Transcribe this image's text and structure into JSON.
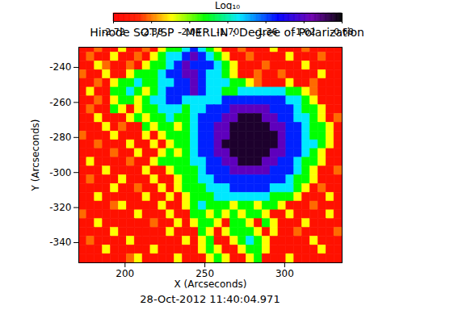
{
  "chart_data": {
    "type": "heatmap",
    "title": "Hinode SOT/SP - MERLIN : Degree of Polarization",
    "caption": "28-Oct-2012 11:40:04.971",
    "x_label": "X (Arcseconds)",
    "y_label": "Y (Arcseconds)",
    "xlim": [
      171,
      336
    ],
    "ylim": [
      -351.5,
      -228.5
    ],
    "xticks": [
      200,
      250,
      300
    ],
    "yticks": [
      -340,
      -320,
      -300,
      -280,
      -260,
      -240
    ],
    "colorbar": {
      "label": "Log₁₀",
      "lim": [
        -2.72,
        -0.68
      ],
      "ticks": [
        -2.72,
        -2.38,
        -2.04,
        {
          "value": -1.7,
          "label": "-1.70"
        },
        -1.36,
        -1.02,
        -0.68
      ]
    },
    "cells": {
      "x": [
        173.5,
        178.5,
        183.5,
        188.5,
        193.5,
        198.5,
        203.5,
        208.5,
        213.5,
        218.5,
        223.5,
        228.5,
        233.5,
        238.5,
        243.5,
        248.5,
        253.5,
        258.5,
        263.5,
        268.5,
        273.5,
        278.5,
        283.5,
        288.5,
        293.5,
        298.5,
        303.5,
        308.5,
        313.5,
        318.5,
        323.5,
        328.5,
        333.5
      ],
      "y": [
        -229,
        -234,
        -239,
        -244,
        -249,
        -254,
        -259,
        -264,
        -269,
        -274,
        -279,
        -284,
        -289,
        -294,
        -299,
        -304,
        -309,
        -314,
        -319,
        -324,
        -329,
        -334,
        -339,
        -344,
        -349
      ],
      "values": [
        [
          -2.6,
          -2.6,
          -2.4,
          -2.6,
          -2.6,
          -2.2,
          -2.6,
          -2.6,
          -2.4,
          -2.6,
          -2.2,
          -1.9,
          -1.9,
          -1.6,
          -1.3,
          -1.6,
          -1.9,
          -2.2,
          -2.6,
          -2.6,
          -2.4,
          -2.6,
          -2.6,
          -2.6,
          -2.2,
          -2.6,
          -2.6,
          -2.6,
          -2.4,
          -2.6,
          -2.6,
          -2.6,
          -2.6
        ],
        [
          -2.6,
          -2.4,
          -2.6,
          -2.6,
          -2.2,
          -2.6,
          -2.6,
          -2.4,
          -2.6,
          -2.2,
          -1.9,
          -1.6,
          -1.6,
          -1.3,
          -1.0,
          -1.3,
          -1.6,
          -1.9,
          -2.2,
          -2.6,
          -2.6,
          -2.4,
          -2.6,
          -2.6,
          -2.6,
          -2.6,
          -2.2,
          -2.6,
          -2.6,
          -2.6,
          -2.4,
          -2.6,
          -2.6
        ],
        [
          -2.6,
          -2.6,
          -2.2,
          -2.4,
          -2.6,
          -2.6,
          -2.4,
          -2.6,
          -2.2,
          -1.9,
          -1.9,
          -1.6,
          -1.3,
          -1.0,
          -1.3,
          -1.3,
          -1.3,
          -1.6,
          -1.9,
          -2.2,
          -2.6,
          -2.6,
          -2.6,
          -2.4,
          -2.6,
          -2.6,
          -2.6,
          -2.6,
          -2.2,
          -2.6,
          -2.6,
          -2.6,
          -2.6
        ],
        [
          -2.4,
          -2.6,
          -2.6,
          -2.2,
          -2.6,
          -2.6,
          -2.2,
          -1.9,
          -1.9,
          -1.9,
          -1.6,
          -1.3,
          -1.3,
          -1.0,
          -1.0,
          -1.3,
          -1.6,
          -1.6,
          -1.9,
          -2.2,
          -2.6,
          -2.6,
          -2.4,
          -2.6,
          -2.6,
          -2.4,
          -2.6,
          -2.6,
          -2.6,
          -2.6,
          -2.2,
          -2.6,
          -2.6
        ],
        [
          -2.6,
          -2.6,
          -2.4,
          -2.6,
          -2.2,
          -1.9,
          -1.9,
          -1.6,
          -1.9,
          -1.9,
          -1.6,
          -1.6,
          -1.3,
          -1.3,
          -1.0,
          -1.3,
          -1.6,
          -1.6,
          -1.6,
          -1.9,
          -1.9,
          -2.2,
          -2.4,
          -2.6,
          -2.6,
          -2.6,
          -2.2,
          -2.6,
          -2.6,
          -2.4,
          -2.6,
          -2.6,
          -2.6
        ],
        [
          -2.6,
          -2.2,
          -2.6,
          -2.6,
          -1.9,
          -1.9,
          -1.6,
          -1.9,
          -2.2,
          -1.9,
          -1.6,
          -1.3,
          -1.3,
          -1.3,
          -1.0,
          -1.3,
          -1.6,
          -1.6,
          -1.9,
          -1.9,
          -1.6,
          -1.6,
          -1.6,
          -1.6,
          -1.6,
          -1.6,
          -1.9,
          -1.9,
          -2.2,
          -2.4,
          -2.6,
          -2.6,
          -2.6
        ],
        [
          -2.6,
          -2.6,
          -2.4,
          -2.6,
          -2.2,
          -1.9,
          -1.9,
          -2.2,
          -1.9,
          -1.6,
          -1.6,
          -1.3,
          -1.3,
          -1.6,
          -1.6,
          -1.6,
          -1.6,
          -1.6,
          -1.3,
          -1.3,
          -1.3,
          -1.3,
          -1.3,
          -1.3,
          -1.3,
          -1.3,
          -1.6,
          -1.6,
          -1.9,
          -2.2,
          -2.6,
          -2.6,
          -2.6
        ],
        [
          -2.6,
          -2.4,
          -2.6,
          -2.6,
          -1.9,
          -2.2,
          -2.6,
          -2.2,
          -1.9,
          -1.9,
          -1.6,
          -1.6,
          -1.6,
          -1.9,
          -1.6,
          -1.6,
          -1.3,
          -1.3,
          -1.3,
          -1.0,
          -1.0,
          -1.0,
          -1.0,
          -1.0,
          -1.3,
          -1.3,
          -1.3,
          -1.6,
          -1.9,
          -1.9,
          -2.2,
          -2.6,
          -2.6
        ],
        [
          -2.6,
          -2.6,
          -2.2,
          -2.6,
          -2.6,
          -2.6,
          -2.2,
          -1.9,
          -2.2,
          -1.9,
          -1.9,
          -1.6,
          -1.9,
          -1.9,
          -1.6,
          -1.3,
          -1.3,
          -1.3,
          -1.0,
          -1.0,
          -0.75,
          -0.75,
          -0.75,
          -1.0,
          -1.0,
          -1.3,
          -1.3,
          -1.6,
          -1.6,
          -1.9,
          -2.2,
          -2.6,
          -2.4
        ],
        [
          -2.6,
          -2.6,
          -2.6,
          -2.2,
          -2.6,
          -2.4,
          -2.6,
          -2.6,
          -1.9,
          -2.2,
          -1.9,
          -1.9,
          -2.2,
          -1.9,
          -1.6,
          -1.3,
          -1.3,
          -1.0,
          -1.0,
          -0.75,
          -0.75,
          -0.75,
          -0.75,
          -0.75,
          -1.0,
          -1.0,
          -1.3,
          -1.3,
          -1.6,
          -1.9,
          -1.9,
          -2.2,
          -2.6
        ],
        [
          -2.4,
          -2.6,
          -2.6,
          -2.6,
          -2.2,
          -2.6,
          -2.6,
          -2.6,
          -2.2,
          -2.6,
          -2.2,
          -1.9,
          -1.9,
          -1.9,
          -1.6,
          -1.3,
          -1.3,
          -1.0,
          -1.0,
          -0.75,
          -0.75,
          -0.75,
          -0.75,
          -0.75,
          -0.75,
          -1.0,
          -1.3,
          -1.3,
          -1.6,
          -1.9,
          -1.9,
          -2.2,
          -2.6
        ],
        [
          -2.6,
          -2.6,
          -2.4,
          -2.6,
          -2.6,
          -2.6,
          -2.2,
          -2.6,
          -2.6,
          -2.2,
          -2.6,
          -2.2,
          -1.9,
          -1.9,
          -1.6,
          -1.3,
          -1.3,
          -1.0,
          -0.75,
          -0.75,
          -0.75,
          -0.75,
          -0.75,
          -0.75,
          -0.75,
          -1.0,
          -1.3,
          -1.3,
          -1.6,
          -1.6,
          -1.9,
          -2.2,
          -2.6
        ],
        [
          -2.6,
          -2.6,
          -2.6,
          -2.6,
          -2.4,
          -2.6,
          -2.6,
          -2.2,
          -2.6,
          -2.6,
          -2.2,
          -1.9,
          -2.2,
          -1.9,
          -1.6,
          -1.3,
          -1.3,
          -1.0,
          -1.0,
          -0.75,
          -0.75,
          -0.75,
          -0.75,
          -0.75,
          -1.0,
          -1.0,
          -1.3,
          -1.3,
          -1.6,
          -1.9,
          -2.2,
          -2.6,
          -2.6
        ],
        [
          -2.6,
          -2.2,
          -2.6,
          -2.6,
          -2.6,
          -2.6,
          -2.4,
          -2.6,
          -2.6,
          -2.2,
          -1.9,
          -1.9,
          -1.9,
          -1.9,
          -1.6,
          -1.6,
          -1.3,
          -1.3,
          -1.0,
          -1.0,
          -0.75,
          -0.75,
          -0.75,
          -1.0,
          -1.0,
          -1.3,
          -1.3,
          -1.6,
          -1.9,
          -1.9,
          -2.2,
          -2.6,
          -2.6
        ],
        [
          -2.6,
          -2.6,
          -2.6,
          -2.2,
          -2.6,
          -2.6,
          -2.6,
          -2.6,
          -2.2,
          -2.6,
          -2.6,
          -2.2,
          -1.9,
          -1.9,
          -1.9,
          -1.6,
          -1.3,
          -1.3,
          -1.3,
          -1.0,
          -1.0,
          -1.0,
          -1.0,
          -1.0,
          -1.3,
          -1.3,
          -1.3,
          -1.6,
          -1.9,
          -2.2,
          -2.6,
          -2.6,
          -2.4
        ],
        [
          -2.6,
          -2.4,
          -2.6,
          -2.6,
          -2.6,
          -2.2,
          -2.6,
          -2.6,
          -2.6,
          -2.2,
          -2.6,
          -2.6,
          -2.2,
          -1.9,
          -1.9,
          -1.6,
          -1.6,
          -1.3,
          -1.3,
          -1.3,
          -1.3,
          -1.3,
          -1.3,
          -1.3,
          -1.3,
          -1.3,
          -1.6,
          -1.9,
          -1.9,
          -2.2,
          -2.6,
          -2.6,
          -2.6
        ],
        [
          -2.6,
          -2.6,
          -2.6,
          -2.6,
          -2.2,
          -2.6,
          -2.6,
          -2.4,
          -2.6,
          -2.6,
          -2.2,
          -2.6,
          -2.2,
          -1.9,
          -1.9,
          -1.9,
          -1.6,
          -1.6,
          -1.6,
          -1.3,
          -1.3,
          -1.3,
          -1.3,
          -1.3,
          -1.6,
          -1.6,
          -1.6,
          -1.9,
          -2.2,
          -2.6,
          -2.4,
          -2.6,
          -2.6
        ],
        [
          -2.6,
          -2.6,
          -2.2,
          -2.6,
          -2.6,
          -2.6,
          -2.6,
          -2.6,
          -2.2,
          -2.6,
          -2.6,
          -2.2,
          -2.6,
          -2.2,
          -1.9,
          -1.9,
          -1.9,
          -1.6,
          -1.6,
          -1.6,
          -1.6,
          -1.6,
          -1.6,
          -1.6,
          -1.9,
          -1.9,
          -1.9,
          -2.2,
          -2.6,
          -2.6,
          -2.6,
          -2.2,
          -2.6
        ],
        [
          -2.6,
          -2.6,
          -2.6,
          -2.6,
          -2.4,
          -2.2,
          -2.6,
          -2.6,
          -2.6,
          -2.6,
          -2.2,
          -2.6,
          -2.6,
          -2.2,
          -1.9,
          -1.6,
          -1.9,
          -1.9,
          -1.9,
          -2.2,
          -1.9,
          -1.9,
          -2.2,
          -1.9,
          -1.9,
          -2.2,
          -2.6,
          -2.6,
          -2.6,
          -2.4,
          -2.6,
          -2.6,
          -2.6
        ],
        [
          -2.4,
          -2.6,
          -2.6,
          -2.6,
          -2.6,
          -2.6,
          -2.6,
          -2.2,
          -2.6,
          -2.6,
          -2.6,
          -2.2,
          -2.6,
          -2.6,
          -1.9,
          -1.9,
          -2.2,
          -1.9,
          -2.2,
          -1.9,
          -2.2,
          -1.9,
          -1.9,
          -2.2,
          -2.6,
          -2.6,
          -2.2,
          -2.6,
          -2.6,
          -2.6,
          -2.6,
          -2.2,
          -2.6
        ],
        [
          -2.6,
          -2.6,
          -2.2,
          -2.6,
          -2.6,
          -2.6,
          -2.6,
          -2.6,
          -2.6,
          -2.4,
          -2.6,
          -2.6,
          -2.2,
          -2.6,
          -2.2,
          -1.9,
          -1.9,
          -2.2,
          -2.6,
          -1.9,
          -1.9,
          -2.2,
          -2.6,
          -1.9,
          -2.2,
          -2.6,
          -2.6,
          -2.6,
          -2.2,
          -2.6,
          -2.6,
          -2.6,
          -2.6
        ],
        [
          -2.6,
          -2.6,
          -2.6,
          -2.6,
          -2.2,
          -2.6,
          -2.6,
          -2.6,
          -2.6,
          -2.6,
          -2.6,
          -2.2,
          -2.6,
          -2.6,
          -2.6,
          -1.9,
          -2.2,
          -2.6,
          -2.2,
          -1.9,
          -1.9,
          -1.9,
          -2.2,
          -2.6,
          -2.2,
          -2.6,
          -2.6,
          -2.4,
          -2.6,
          -2.6,
          -2.6,
          -2.6,
          -2.4
        ],
        [
          -2.6,
          -2.4,
          -2.6,
          -2.6,
          -2.6,
          -2.6,
          -2.2,
          -2.6,
          -2.6,
          -2.6,
          -2.6,
          -2.6,
          -2.6,
          -2.2,
          -2.6,
          -2.2,
          -1.9,
          -2.6,
          -2.6,
          -2.2,
          -1.9,
          -1.6,
          -1.9,
          -2.2,
          -2.6,
          -2.6,
          -2.6,
          -2.6,
          -2.6,
          -2.2,
          -2.6,
          -2.6,
          -2.6
        ],
        [
          -2.6,
          -2.6,
          -2.6,
          -2.2,
          -2.6,
          -2.6,
          -2.6,
          -2.6,
          -2.6,
          -2.2,
          -2.6,
          -2.6,
          -2.6,
          -2.6,
          -2.6,
          -2.2,
          -1.9,
          -2.2,
          -2.6,
          -2.6,
          -2.2,
          -1.9,
          -1.9,
          -2.2,
          -2.6,
          -2.6,
          -2.6,
          -2.6,
          -2.6,
          -2.6,
          -2.2,
          -2.6,
          -2.6
        ],
        [
          -2.6,
          -2.6,
          -2.6,
          -2.6,
          -2.6,
          -2.6,
          -2.4,
          -2.2,
          -2.6,
          -2.6,
          -2.6,
          -2.6,
          -2.2,
          -2.6,
          -2.6,
          -2.6,
          -2.2,
          -1.9,
          -2.2,
          -2.6,
          -2.6,
          -2.2,
          -1.9,
          -2.6,
          -2.6,
          -2.6,
          -2.2,
          -2.6,
          -2.6,
          -2.6,
          -2.6,
          -2.6,
          -2.6
        ]
      ]
    }
  }
}
